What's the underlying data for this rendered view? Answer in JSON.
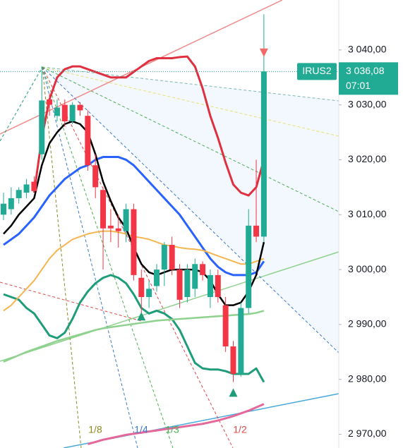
{
  "chart_data": {
    "type": "candlestick",
    "symbol": "IRUS2",
    "last_price": {
      "value": 3036.08,
      "label": "3 036,08"
    },
    "countdown": "07:01",
    "up_color": "#22ab94",
    "down_color": "#f23645",
    "ylim": [
      2967.5,
      3049.1
    ],
    "yticks": [
      {
        "value": 2970,
        "label": "2 970,00"
      },
      {
        "value": 2980,
        "label": "2 980,00"
      },
      {
        "value": 2990,
        "label": "2 990,00"
      },
      {
        "value": 3000,
        "label": "3 000,00"
      },
      {
        "value": 3010,
        "label": "3 010,00"
      },
      {
        "value": 3020,
        "label": "3 020,00"
      },
      {
        "value": 3030,
        "label": "3 030,00"
      },
      {
        "value": 3040,
        "label": "3 040,00"
      }
    ],
    "open": [
      3010,
      3011,
      3013,
      3014,
      3016,
      3021,
      3031,
      3028,
      3030,
      3027,
      3030,
      3028,
      3019,
      3014.5,
      3008,
      3007.5,
      3007,
      3011,
      2998.5,
      2995,
      2997,
      3000,
      3004.5,
      3000,
      2995,
      2996.5,
      3001,
      2995,
      2999,
      2993.5,
      2986,
      2981,
      2993,
      3008,
      3006
    ],
    "high": [
      3014,
      3015,
      3015,
      3016.5,
      3017,
      3037,
      3032,
      3031,
      3031,
      3030.5,
      3030.5,
      3029,
      3021,
      3015,
      3011,
      3010,
      3012,
      3012,
      3000,
      2998,
      3001,
      3005,
      3006,
      3001,
      3001,
      3002,
      3001.5,
      3000,
      3000,
      2995,
      2987,
      2994,
      3011,
      3020,
      3046.5
    ],
    "low": [
      3009,
      3010,
      3012,
      3013,
      3014,
      3020,
      3028,
      3027,
      3026,
      3026.5,
      3028,
      3018,
      3013,
      3000,
      3005,
      3004,
      3005,
      2998,
      2992,
      2993,
      2996,
      2997,
      2999,
      2993,
      2994,
      2995,
      2998,
      2993,
      2994,
      2985,
      2979.5,
      2980.5,
      2992,
      3005,
      3005
    ],
    "close": [
      3012,
      3013,
      3014.5,
      3015.5,
      3014.3,
      3030.8,
      3030,
      3029.5,
      3027,
      3030,
      3029,
      3019,
      3015,
      3007.5,
      3007.5,
      3007,
      3011,
      2999,
      2995,
      2996.5,
      3000,
      3004.5,
      3000,
      2994.5,
      3000,
      3001,
      2999,
      2999,
      2995,
      2986,
      2981,
      2993,
      3008,
      3006,
      3036.08
    ],
    "lines": [
      {
        "color": "#e03040",
        "width": 3,
        "values": [
          null,
          null,
          null,
          null,
          3014,
          3024,
          3031,
          3035,
          3036.5,
          3037,
          3037,
          3036.5,
          3036,
          3035.5,
          3035,
          3035,
          3035,
          3036,
          3037,
          3038,
          3038.5,
          3038.5,
          3038.5,
          3038.7,
          3038.8,
          3037,
          3033,
          3028,
          3024,
          3019.5,
          3015.5,
          3014,
          3013.5,
          3015,
          3020
        ]
      },
      {
        "color": "#1f9d7a",
        "width": 3,
        "values": [
          2995.5,
          2995,
          2994.5,
          2993,
          2992,
          2990,
          2988,
          2987.5,
          2988.5,
          2991,
          2994,
          2996,
          2997.5,
          2998.5,
          2999,
          2998.5,
          2997.5,
          2995.5,
          2993,
          2992,
          2992.5,
          2992,
          2991,
          2989,
          2986,
          2983,
          2982,
          2981.8,
          2981.8,
          2981.5,
          2981,
          2981,
          2981,
          2982,
          2979.5
        ]
      },
      {
        "color": "#2962ff",
        "width": 3,
        "values": [
          3004.5,
          3005.5,
          3006.5,
          3008,
          3009.5,
          3011.5,
          3013.5,
          3015,
          3016.5,
          3017.5,
          3018.5,
          3019,
          3020,
          3020.5,
          3020.5,
          3020.5,
          3020,
          3019,
          3017.5,
          3016,
          3014.5,
          3013,
          3011.5,
          3010,
          3008,
          3006,
          3004,
          3002,
          3000.5,
          2999.5,
          2999,
          2999,
          2999,
          2999.5,
          3001.5
        ]
      },
      {
        "color": "#f5b550",
        "width": 2,
        "values": [
          2992.5,
          2993.5,
          2995,
          2996.5,
          2998,
          3000,
          3002,
          3003.5,
          3004.5,
          3005.5,
          3006,
          3006.5,
          3006.8,
          3007,
          3007,
          3006.8,
          3006.5,
          3006,
          3005.8,
          3005.5,
          3005,
          3004.5,
          3004.3,
          3004,
          3003.8,
          3003.7,
          3003.5,
          3003,
          3002.5,
          3002,
          3001.5,
          3001,
          3001,
          3001.5,
          3002
        ]
      },
      {
        "color": "#000000",
        "width": 2.5,
        "values": [
          3006.5,
          3008,
          3010,
          3011.5,
          3013,
          3019,
          3023,
          3025,
          3026.5,
          3027,
          3026.5,
          3025,
          3021,
          3016,
          3012.5,
          3009.5,
          3007.5,
          3004,
          3001,
          2999.5,
          2999,
          2999.5,
          3000,
          3000,
          3000,
          3000,
          2999.5,
          2998,
          2995.5,
          2993.5,
          2993.5,
          2994,
          2996,
          2999,
          3005
        ]
      },
      {
        "color": "#8fd18f",
        "width": 2.5,
        "values": [
          2983.2,
          2983.8,
          2984.4,
          2985,
          2985.5,
          2986,
          2986.5,
          2987,
          2987.4,
          2987.8,
          2988.2,
          2988.6,
          2989,
          2989.3,
          2989.5,
          2989.7,
          2989.9,
          2990.1,
          2990.3,
          2990.5,
          2990.7,
          2990.8,
          2990.9,
          2991,
          2991.1,
          2991.2,
          2991.3,
          2991.4,
          2991.5,
          2991.6,
          2991.7,
          2991.8,
          2991.9,
          2992.1,
          2992.5
        ]
      },
      {
        "color": "#e5689a",
        "width": 3,
        "values": [
          null,
          null,
          null,
          null,
          null,
          null,
          null,
          null,
          null,
          null,
          null,
          2968.2,
          2968.6,
          2969,
          2969.3,
          2969.6,
          2969.9,
          2970.1,
          2970.3,
          2970.5,
          2970.7,
          2970.9,
          2971.1,
          2971.3,
          2971.5,
          2971.7,
          2971.9,
          2972.2,
          2972.5,
          2972.9,
          2973.3,
          2973.8,
          2974.3,
          2974.9,
          2975.5
        ]
      }
    ],
    "markers": [
      {
        "at": 18,
        "value": 2991.5,
        "color": "#1f9d7a",
        "dir": "up"
      },
      {
        "at": 30,
        "value": 2977.6,
        "color": "#1f9d7a",
        "dir": "up"
      },
      {
        "at": 34,
        "value": 3039.5,
        "color": "#f06a6a",
        "dir": "down"
      }
    ],
    "annotations": [
      {
        "text": "1/8",
        "color": "#8a8a20"
      },
      {
        "text": "1/4",
        "color": "#3a78c8"
      },
      {
        "text": "1/3",
        "color": "#4caf50"
      },
      {
        "text": "1/2",
        "color": "#e04a4a"
      }
    ]
  }
}
